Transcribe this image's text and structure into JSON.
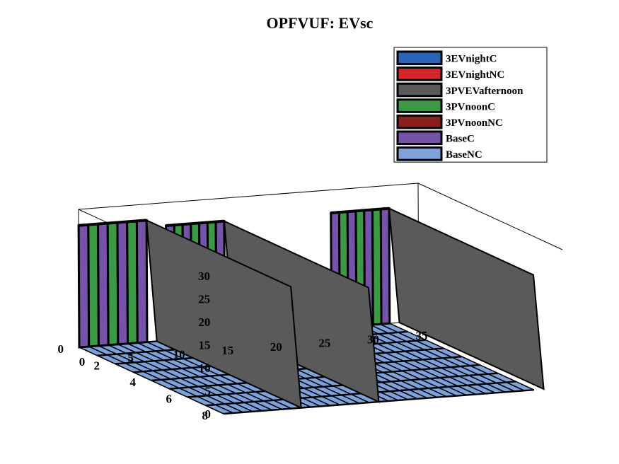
{
  "chart_data": {
    "type": "3d-surface",
    "title": "OPFVUF: EVsc",
    "xlabel": "",
    "ylabel": "",
    "zlabel": "",
    "xlim": [
      0,
      35
    ],
    "ylim": [
      0,
      8
    ],
    "zlim": [
      0,
      30
    ],
    "x_ticks": [
      "0",
      "5",
      "10",
      "15",
      "20",
      "25",
      "30",
      "35"
    ],
    "y_ticks": [
      "0",
      "2",
      "4",
      "6",
      "8"
    ],
    "z_ticks": [
      "0",
      "5",
      "10",
      "15",
      "20",
      "25",
      "30"
    ],
    "legend_position": "top-right",
    "series": [
      {
        "name": "3EVnightC",
        "color": "#2a64b4"
      },
      {
        "name": "3EVnightNC",
        "color": "#d7262b"
      },
      {
        "name": "3PVEVafternoon",
        "color": "#5a5a5a"
      },
      {
        "name": "3PVnoonC",
        "color": "#3c9a46"
      },
      {
        "name": "3PVnoonNC",
        "color": "#8b1d1d"
      },
      {
        "name": "BaseC",
        "color": "#7453a8"
      },
      {
        "name": "BaseNC",
        "color": "#7ea3dc"
      }
    ],
    "ridges": [
      {
        "x_start": 0,
        "x_end": 7,
        "peak": 26.5
      },
      {
        "x_start": 9,
        "x_end": 15,
        "peak": 25
      },
      {
        "x_start": 26,
        "x_end": 32,
        "peak": 25
      }
    ]
  }
}
